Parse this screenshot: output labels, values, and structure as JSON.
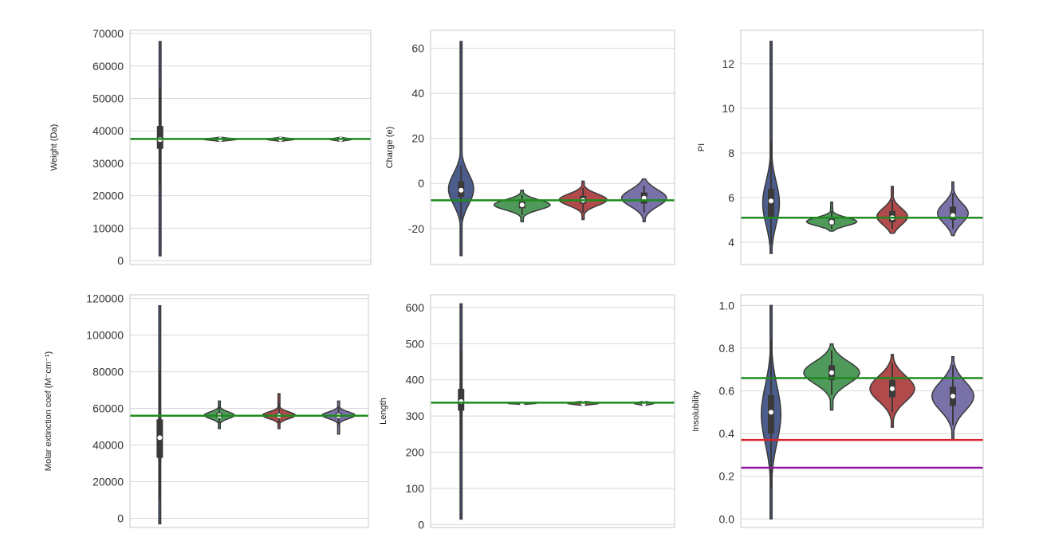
{
  "colors": {
    "violins": [
      "#4c5d8c",
      "#4f9a5b",
      "#b14a4a",
      "#7872a9"
    ],
    "green_line": "#1f8a1f",
    "red_line": "#d9232f",
    "purple_line": "#8b1a9c",
    "grid": "#d8d8d8",
    "frame": "#c8c8c8",
    "violin_edge": "#3a3a3a"
  },
  "chart_data": [
    {
      "type": "violin",
      "ylabel": "Weight (Da)",
      "ylim": [
        -1200,
        71000
      ],
      "yticks": [
        0,
        10000,
        20000,
        30000,
        40000,
        50000,
        60000,
        70000
      ],
      "ytick_labels": [
        "0",
        "10000",
        "20000",
        "30000",
        "40000",
        "50000",
        "60000",
        "70000"
      ],
      "grid": true,
      "series": [
        {
          "median": 37300,
          "q1": 34500,
          "q3": 41500,
          "whisker_low": 23000,
          "whisker_high": 53000,
          "min": 1500,
          "max": 67500,
          "spread": 0.04
        },
        {
          "median": 37400,
          "q1": 37200,
          "q3": 37600,
          "whisker_low": 37000,
          "whisker_high": 37800,
          "min": 36800,
          "max": 38000,
          "spread": 0.6
        },
        {
          "median": 37400,
          "q1": 37200,
          "q3": 37600,
          "whisker_low": 37000,
          "whisker_high": 37800,
          "min": 36800,
          "max": 38000,
          "spread": 0.5
        },
        {
          "median": 37400,
          "q1": 37200,
          "q3": 37600,
          "whisker_low": 37000,
          "whisker_high": 37800,
          "min": 36800,
          "max": 38000,
          "spread": 0.4
        }
      ],
      "hlines": [
        {
          "y": 37500,
          "color": "green"
        }
      ]
    },
    {
      "type": "violin",
      "ylabel": "Charge (e)",
      "ylim": [
        -36,
        68
      ],
      "yticks": [
        -20,
        0,
        20,
        40,
        60
      ],
      "ytick_labels": [
        "-20",
        "0",
        "20",
        "40",
        "60"
      ],
      "grid": true,
      "series": [
        {
          "median": -3,
          "q1": -6,
          "q3": 1,
          "whisker_low": -16,
          "whisker_high": 8,
          "min": -32,
          "max": 63,
          "spread": 0.45
        },
        {
          "median": -9.5,
          "q1": -11,
          "q3": -8,
          "whisker_low": -14,
          "whisker_high": -5,
          "min": -17,
          "max": -3,
          "spread": 1.0
        },
        {
          "median": -7.5,
          "q1": -9,
          "q3": -5.5,
          "whisker_low": -13,
          "whisker_high": -2,
          "min": -16,
          "max": 1,
          "spread": 0.85
        },
        {
          "median": -6.5,
          "q1": -9,
          "q3": -4,
          "whisker_low": -13,
          "whisker_high": -1,
          "min": -17,
          "max": 2,
          "spread": 0.8
        }
      ],
      "hlines": [
        {
          "y": -7.5,
          "color": "green"
        }
      ]
    },
    {
      "type": "violin",
      "ylabel": "PI",
      "ylim": [
        3.0,
        13.5
      ],
      "yticks": [
        4,
        6,
        8,
        10,
        12
      ],
      "ytick_labels": [
        "4",
        "6",
        "8",
        "10",
        "12"
      ],
      "grid": true,
      "series": [
        {
          "median": 5.85,
          "q1": 5.1,
          "q3": 6.4,
          "whisker_low": 3.9,
          "whisker_high": 8.5,
          "min": 3.5,
          "max": 13.0,
          "spread": 0.3
        },
        {
          "median": 4.9,
          "q1": 4.8,
          "q3": 5.05,
          "whisker_low": 4.6,
          "whisker_high": 5.4,
          "min": 4.5,
          "max": 5.8,
          "spread": 0.9
        },
        {
          "median": 5.1,
          "q1": 4.9,
          "q3": 5.4,
          "whisker_low": 4.6,
          "whisker_high": 5.9,
          "min": 4.4,
          "max": 6.5,
          "spread": 0.55
        },
        {
          "median": 5.2,
          "q1": 5.0,
          "q3": 5.6,
          "whisker_low": 4.6,
          "whisker_high": 6.2,
          "min": 4.3,
          "max": 6.7,
          "spread": 0.55
        }
      ],
      "hlines": [
        {
          "y": 5.1,
          "color": "green"
        }
      ]
    },
    {
      "type": "violin",
      "ylabel": "Molar extinction coef (M⁻cm⁻¹)",
      "ylim": [
        -5000,
        122000
      ],
      "yticks": [
        0,
        20000,
        40000,
        60000,
        80000,
        100000,
        120000
      ],
      "ytick_labels": [
        "0",
        "20000",
        "40000",
        "60000",
        "80000",
        "100000",
        "120000"
      ],
      "grid": true,
      "series": [
        {
          "median": 44000,
          "q1": 33000,
          "q3": 54000,
          "whisker_low": 10000,
          "whisker_high": 80000,
          "min": -3000,
          "max": 116000,
          "spread": 0.05
        },
        {
          "median": 56000,
          "q1": 55000,
          "q3": 57500,
          "whisker_low": 52000,
          "whisker_high": 61000,
          "min": 49000,
          "max": 64000,
          "spread": 0.55
        },
        {
          "median": 56000,
          "q1": 55000,
          "q3": 57500,
          "whisker_low": 52000,
          "whisker_high": 63000,
          "min": 49000,
          "max": 68000,
          "spread": 0.6
        },
        {
          "median": 56000,
          "q1": 55000,
          "q3": 57500,
          "whisker_low": 51000,
          "whisker_high": 61000,
          "min": 46000,
          "max": 64000,
          "spread": 0.6
        }
      ],
      "hlines": [
        {
          "y": 56000,
          "color": "green"
        }
      ]
    },
    {
      "type": "violin",
      "ylabel": "Length",
      "ylim": [
        -8,
        635
      ],
      "yticks": [
        0,
        100,
        200,
        300,
        400,
        500,
        600
      ],
      "ytick_labels": [
        "0",
        "100",
        "200",
        "300",
        "400",
        "500",
        "600"
      ],
      "grid": true,
      "series": [
        {
          "median": 340,
          "q1": 315,
          "q3": 375,
          "whisker_low": 230,
          "whisker_high": 480,
          "min": 15,
          "max": 610,
          "spread": 0.05
        },
        {
          "median": 335,
          "q1": 334,
          "q3": 336,
          "whisker_low": 333,
          "whisker_high": 337,
          "min": 332,
          "max": 338,
          "spread": 0.5
        },
        {
          "median": 335,
          "q1": 333,
          "q3": 337,
          "whisker_low": 332,
          "whisker_high": 338,
          "min": 330,
          "max": 340,
          "spread": 0.55
        },
        {
          "median": 335,
          "q1": 333,
          "q3": 337,
          "whisker_low": 332,
          "whisker_high": 338,
          "min": 330,
          "max": 340,
          "spread": 0.35
        }
      ],
      "hlines": [
        {
          "y": 337,
          "color": "green"
        }
      ]
    },
    {
      "type": "violin",
      "ylabel": "Insolubility",
      "ylim": [
        -0.04,
        1.05
      ],
      "yticks": [
        0.0,
        0.2,
        0.4,
        0.6,
        0.8,
        1.0
      ],
      "ytick_labels": [
        "0.0",
        "0.2",
        "0.4",
        "0.6",
        "0.8",
        "1.0"
      ],
      "grid": true,
      "series": [
        {
          "median": 0.5,
          "q1": 0.4,
          "q3": 0.58,
          "whisker_low": 0.15,
          "whisker_high": 0.84,
          "min": 0.0,
          "max": 1.0,
          "spread": 0.35
        },
        {
          "median": 0.685,
          "q1": 0.65,
          "q3": 0.72,
          "whisker_low": 0.58,
          "whisker_high": 0.79,
          "min": 0.51,
          "max": 0.82,
          "spread": 1.0
        },
        {
          "median": 0.61,
          "q1": 0.57,
          "q3": 0.65,
          "whisker_low": 0.5,
          "whisker_high": 0.73,
          "min": 0.43,
          "max": 0.77,
          "spread": 0.8
        },
        {
          "median": 0.575,
          "q1": 0.53,
          "q3": 0.62,
          "whisker_low": 0.44,
          "whisker_high": 0.72,
          "min": 0.37,
          "max": 0.76,
          "spread": 0.75
        }
      ],
      "hlines": [
        {
          "y": 0.66,
          "color": "green"
        },
        {
          "y": 0.37,
          "color": "red"
        },
        {
          "y": 0.24,
          "color": "purple"
        }
      ]
    }
  ]
}
